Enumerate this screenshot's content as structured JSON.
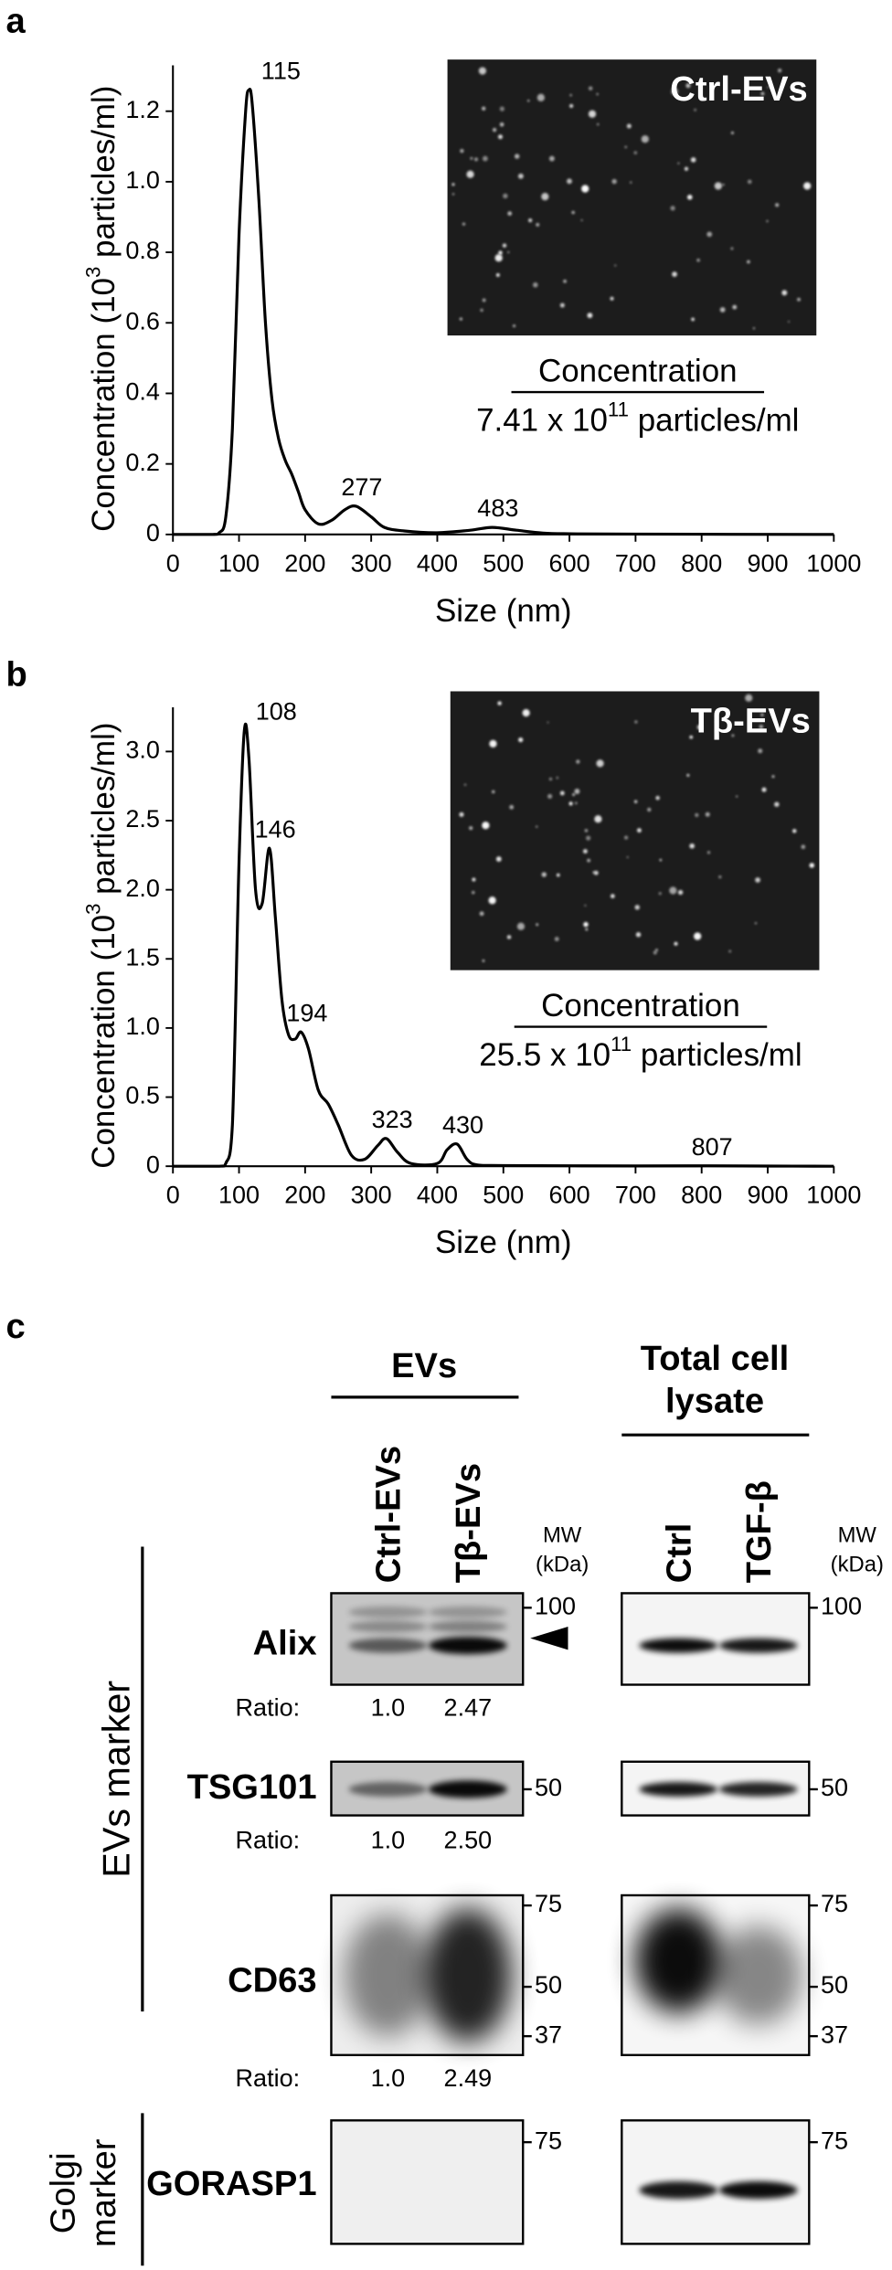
{
  "panels": {
    "a": "a",
    "b": "b",
    "c": "c"
  },
  "chart_data": [
    {
      "type": "line",
      "color": "#000000",
      "x": [
        0,
        60,
        70,
        80,
        90,
        100,
        110,
        115,
        120,
        130,
        140,
        150,
        160,
        170,
        180,
        190,
        200,
        220,
        240,
        260,
        277,
        300,
        320,
        350,
        400,
        450,
        483,
        520,
        560,
        600,
        700,
        1000
      ],
      "values": [
        0,
        0,
        0.005,
        0.05,
        0.3,
        0.85,
        1.2,
        1.26,
        1.22,
        0.95,
        0.6,
        0.38,
        0.27,
        0.21,
        0.17,
        0.12,
        0.07,
        0.03,
        0.04,
        0.07,
        0.08,
        0.05,
        0.02,
        0.01,
        0.005,
        0.012,
        0.02,
        0.012,
        0.004,
        0.002,
        0.001,
        0
      ],
      "xlim": [
        0,
        1000
      ],
      "xticks": [
        0,
        100,
        200,
        300,
        400,
        500,
        600,
        700,
        800,
        900,
        1000
      ],
      "ylim": [
        0,
        1.33
      ],
      "yticks": [
        0,
        0.2,
        0.4,
        0.6,
        0.8,
        {
          "value": 1,
          "label": "1.0"
        },
        1.2
      ],
      "x_label": "Size (nm)",
      "y_label": {
        "before": "Concentration (10",
        "sup": "3",
        "after": " particles/ml)"
      },
      "peaks": [
        115,
        277,
        483
      ],
      "inset": {
        "label": "Ctrl-EVs",
        "heading": "Concentration",
        "value": "7.41 x 10",
        "exponent": "11",
        "unit": " particles/ml"
      }
    },
    {
      "type": "line",
      "color": "#000000",
      "x": [
        0,
        70,
        80,
        90,
        100,
        108,
        115,
        125,
        135,
        146,
        155,
        165,
        175,
        185,
        194,
        205,
        220,
        235,
        250,
        270,
        290,
        310,
        323,
        340,
        360,
        400,
        415,
        430,
        445,
        460,
        500,
        700,
        807,
        900,
        1000
      ],
      "values": [
        0,
        0,
        0.02,
        0.3,
        2.2,
        3.15,
        2.95,
        2.0,
        1.9,
        2.3,
        1.8,
        1.2,
        0.95,
        0.92,
        0.97,
        0.85,
        0.55,
        0.45,
        0.3,
        0.08,
        0.05,
        0.15,
        0.2,
        0.1,
        0.02,
        0.02,
        0.12,
        0.16,
        0.05,
        0.01,
        0.005,
        0.002,
        0.003,
        0.001,
        0
      ],
      "xlim": [
        0,
        1000
      ],
      "xticks": [
        0,
        100,
        200,
        300,
        400,
        500,
        600,
        700,
        800,
        900,
        1000
      ],
      "ylim": [
        0,
        3.32
      ],
      "yticks": [
        0,
        0.5,
        {
          "value": 1,
          "label": "1.0"
        },
        1.5,
        {
          "value": 2,
          "label": "2.0"
        },
        2.5,
        {
          "value": 3,
          "label": "3.0"
        }
      ],
      "x_label": "Size (nm)",
      "y_label": {
        "before": "Concentration (10",
        "sup": "3",
        "after": " particles/ml)"
      },
      "peaks": [
        108,
        146,
        194,
        323,
        430,
        807
      ],
      "inset": {
        "label": "Tβ-EVs",
        "heading": "Concentration",
        "value": "25.5 x 10",
        "exponent": "11",
        "unit": " particles/ml"
      }
    }
  ],
  "blot": {
    "groups": {
      "evs": "EVs",
      "lysate": [
        "Total cell",
        "lysate"
      ]
    },
    "lanes": {
      "evs": [
        "Ctrl-EVs",
        "Tβ-EVs"
      ],
      "lysate": [
        "Ctrl",
        "TGF-β"
      ]
    },
    "mw_header": [
      "MW",
      "(kDa)"
    ],
    "side": {
      "evs_marker": "EVs marker",
      "golgi_marker": [
        "Golgi",
        "marker"
      ]
    },
    "ratio_label": "Ratio:",
    "rows": [
      {
        "protein": "Alix",
        "mw": [
          "100"
        ],
        "ratios": [
          "1.0",
          "2.47"
        ]
      },
      {
        "protein": "TSG101",
        "mw": [
          "50"
        ],
        "ratios": [
          "1.0",
          "2.50"
        ]
      },
      {
        "protein": "CD63",
        "mw": [
          "75",
          "50",
          "37"
        ],
        "ratios": [
          "1.0",
          "2.49"
        ]
      },
      {
        "protein": "GORASP1",
        "mw": [
          "75"
        ]
      }
    ]
  }
}
